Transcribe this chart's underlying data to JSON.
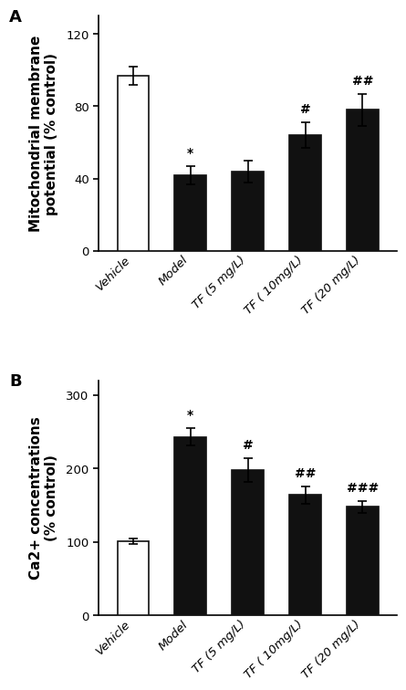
{
  "panel_A": {
    "title": "A",
    "ylabel": "Mitochondrial membrane\npotential (% control)",
    "categories": [
      "Vehicle",
      "Model",
      "TF (5 mg/L)",
      "TF ( 10mg/L)",
      "TF (20 mg/L)"
    ],
    "values": [
      97,
      42,
      44,
      64,
      78
    ],
    "errors": [
      5,
      5,
      6,
      7,
      9
    ],
    "colors": [
      "#ffffff",
      "#111111",
      "#111111",
      "#111111",
      "#111111"
    ],
    "edgecolors": [
      "#111111",
      "#111111",
      "#111111",
      "#111111",
      "#111111"
    ],
    "annotations": [
      "",
      "*",
      "",
      "#",
      "##"
    ],
    "ylim": [
      0,
      130
    ],
    "yticks": [
      0,
      40,
      80,
      120
    ]
  },
  "panel_B": {
    "title": "B",
    "ylabel": "Ca2+ concentrations\n(% control)",
    "categories": [
      "Vehicle",
      "Model",
      "TF (5 mg/L)",
      "TF ( 10mg/L)",
      "TF (20 mg/L)"
    ],
    "values": [
      101,
      243,
      198,
      164,
      148
    ],
    "errors": [
      4,
      12,
      16,
      12,
      8
    ],
    "colors": [
      "#ffffff",
      "#111111",
      "#111111",
      "#111111",
      "#111111"
    ],
    "edgecolors": [
      "#111111",
      "#111111",
      "#111111",
      "#111111",
      "#111111"
    ],
    "annotations": [
      "",
      "*",
      "#",
      "##",
      "###"
    ],
    "ylim": [
      0,
      320
    ],
    "yticks": [
      0,
      100,
      200,
      300
    ]
  },
  "bar_width": 0.55,
  "annotation_fontsize": 10,
  "label_fontsize": 11,
  "tick_fontsize": 9.5,
  "panel_label_fontsize": 13
}
